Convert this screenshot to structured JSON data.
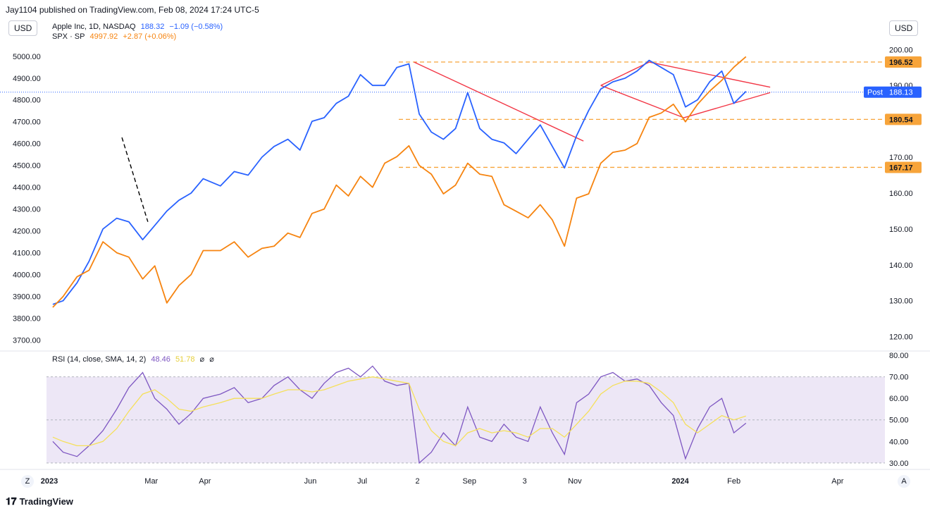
{
  "header": {
    "publisher": "Jay1104 published on TradingView.com, Feb 08, 2024 17:24 UTC-5"
  },
  "currency_left": "USD",
  "currency_right": "USD",
  "legend": {
    "aapl": {
      "name": "Apple Inc, 1D, NASDAQ",
      "price": "188.32",
      "change": "−1.09 (−0.58%)",
      "color": "#2962ff"
    },
    "spx": {
      "name": "SPX · SP",
      "price": "4997.92",
      "change": "+2.87 (+0.06%)",
      "color": "#f68410"
    }
  },
  "rsi_legend": {
    "name": "RSI (14, close, SMA, 14, 2)",
    "value": "48.46",
    "sma_value": "51.78",
    "icons": [
      "eye-off-icon",
      "eye-off-icon"
    ],
    "glyph1": "⌀",
    "glyph2": "⌀"
  },
  "price_labels": {
    "level1": "196.52",
    "level2": "180.54",
    "level3": "167.17",
    "post_label": "Post",
    "post_value": "188.13"
  },
  "axis_buttons": {
    "left": "Z",
    "right": "A"
  },
  "footer": {
    "brand": "TradingView"
  },
  "colors": {
    "aapl": "#2962ff",
    "spx": "#f68410",
    "trend": "#f23645",
    "rsi": "#7e57c2",
    "rsi_sma": "#f5e05a",
    "rsi_band": "#ede7f6"
  },
  "chart_data": [
    {
      "type": "line",
      "title": "",
      "x_ticks": [
        "2023",
        "Mar",
        "Apr",
        "Jun",
        "Jul",
        "2",
        "Sep",
        "3",
        "Nov",
        "2024",
        "Feb",
        "Apr"
      ],
      "left_axis": {
        "label": "USD",
        "ylim": [
          3650,
          5080
        ],
        "ticks": [
          "5000.00",
          "4900.00",
          "4800.00",
          "4700.00",
          "4600.00",
          "4500.00",
          "4400.00",
          "4300.00",
          "4200.00",
          "4100.00",
          "4000.00",
          "3900.00",
          "3800.00",
          "3700.00"
        ]
      },
      "right_axis": {
        "label": "USD",
        "ylim": [
          116,
          203
        ],
        "ticks": [
          "200.00",
          "190.00",
          "170.00",
          "160.00",
          "150.00",
          "140.00",
          "130.00",
          "120.00"
        ]
      },
      "series": [
        {
          "name": "Apple Inc, 1D, NASDAQ",
          "axis": "right",
          "x": [
            "2023-01-03",
            "2023-01-09",
            "2023-01-17",
            "2023-01-24",
            "2023-02-01",
            "2023-02-09",
            "2023-02-16",
            "2023-02-24",
            "2023-03-03",
            "2023-03-10",
            "2023-03-17",
            "2023-03-24",
            "2023-03-31",
            "2023-04-10",
            "2023-04-18",
            "2023-04-26",
            "2023-05-04",
            "2023-05-11",
            "2023-05-19",
            "2023-05-26",
            "2023-06-02",
            "2023-06-09",
            "2023-06-16",
            "2023-06-23",
            "2023-06-30",
            "2023-07-07",
            "2023-07-14",
            "2023-07-21",
            "2023-07-28",
            "2023-08-03",
            "2023-08-10",
            "2023-08-17",
            "2023-08-24",
            "2023-08-31",
            "2023-09-07",
            "2023-09-14",
            "2023-09-21",
            "2023-09-28",
            "2023-10-05",
            "2023-10-12",
            "2023-10-19",
            "2023-10-26",
            "2023-11-02",
            "2023-11-09",
            "2023-11-16",
            "2023-11-23",
            "2023-11-30",
            "2023-12-07",
            "2023-12-14",
            "2023-12-21",
            "2023-12-28",
            "2024-01-04",
            "2024-01-11",
            "2024-01-18",
            "2024-01-25",
            "2024-02-01",
            "2024-02-08"
          ],
          "values": [
            129,
            130,
            135,
            141,
            150,
            153,
            152,
            147,
            151,
            155,
            158,
            160,
            164,
            162,
            166,
            165,
            170,
            173,
            175,
            172,
            180,
            181,
            185,
            187,
            193,
            190,
            190,
            195,
            196,
            182,
            177,
            175,
            178,
            188,
            178,
            175,
            174,
            171,
            175,
            179,
            173,
            167,
            176,
            183,
            189,
            191,
            192,
            194,
            197,
            195,
            193,
            184,
            186,
            191,
            194,
            185,
            188.32
          ]
        },
        {
          "name": "SPX · SP",
          "axis": "left",
          "x": [
            "2023-01-03",
            "2023-01-09",
            "2023-01-17",
            "2023-01-24",
            "2023-02-01",
            "2023-02-09",
            "2023-02-16",
            "2023-02-24",
            "2023-03-03",
            "2023-03-10",
            "2023-03-17",
            "2023-03-24",
            "2023-03-31",
            "2023-04-10",
            "2023-04-18",
            "2023-04-26",
            "2023-05-04",
            "2023-05-11",
            "2023-05-19",
            "2023-05-26",
            "2023-06-02",
            "2023-06-09",
            "2023-06-16",
            "2023-06-23",
            "2023-06-30",
            "2023-07-07",
            "2023-07-14",
            "2023-07-21",
            "2023-07-28",
            "2023-08-03",
            "2023-08-10",
            "2023-08-17",
            "2023-08-24",
            "2023-08-31",
            "2023-09-07",
            "2023-09-14",
            "2023-09-21",
            "2023-09-28",
            "2023-10-05",
            "2023-10-12",
            "2023-10-19",
            "2023-10-26",
            "2023-11-02",
            "2023-11-09",
            "2023-11-16",
            "2023-11-23",
            "2023-11-30",
            "2023-12-07",
            "2023-12-14",
            "2023-12-21",
            "2023-12-28",
            "2024-01-04",
            "2024-01-11",
            "2024-01-18",
            "2024-01-25",
            "2024-02-01",
            "2024-02-08"
          ],
          "values": [
            3850,
            3900,
            3990,
            4020,
            4150,
            4100,
            4080,
            3980,
            4040,
            3870,
            3950,
            4000,
            4110,
            4110,
            4150,
            4080,
            4120,
            4130,
            4190,
            4170,
            4280,
            4300,
            4410,
            4360,
            4450,
            4400,
            4510,
            4540,
            4590,
            4500,
            4460,
            4370,
            4410,
            4510,
            4460,
            4450,
            4320,
            4290,
            4260,
            4320,
            4250,
            4130,
            4350,
            4370,
            4510,
            4560,
            4570,
            4600,
            4720,
            4740,
            4780,
            4700,
            4780,
            4840,
            4890,
            4950,
            4997.92
          ]
        }
      ],
      "levels": [
        196.52,
        180.54,
        167.17
      ],
      "post_price": 188.13
    },
    {
      "type": "line",
      "title": "RSI (14, close, SMA, 14, 2)",
      "ylim": [
        27,
        82
      ],
      "ticks": [
        "80.00",
        "70.00",
        "60.00",
        "50.00",
        "40.00",
        "30.00"
      ],
      "band": [
        30,
        70
      ],
      "series": [
        {
          "name": "RSI",
          "values": [
            40,
            35,
            33,
            38,
            45,
            55,
            65,
            72,
            60,
            55,
            48,
            53,
            60,
            62,
            65,
            58,
            60,
            66,
            70,
            64,
            60,
            67,
            72,
            74,
            70,
            75,
            68,
            66,
            67,
            30,
            35,
            44,
            38,
            56,
            42,
            40,
            48,
            42,
            40,
            56,
            44,
            34,
            58,
            62,
            70,
            72,
            68,
            69,
            66,
            58,
            52,
            32,
            46,
            56,
            60,
            44,
            48.46
          ]
        },
        {
          "name": "RSI-based MA",
          "values": [
            42,
            40,
            38,
            38,
            40,
            46,
            54,
            62,
            64,
            60,
            55,
            54,
            56,
            58,
            60,
            60,
            60,
            62,
            64,
            64,
            63,
            64,
            66,
            68,
            69,
            70,
            69,
            68,
            67,
            55,
            45,
            40,
            38,
            44,
            46,
            44,
            45,
            44,
            42,
            46,
            46,
            42,
            48,
            54,
            62,
            66,
            68,
            68,
            67,
            63,
            58,
            48,
            44,
            48,
            52,
            50,
            51.78
          ]
        }
      ]
    }
  ]
}
